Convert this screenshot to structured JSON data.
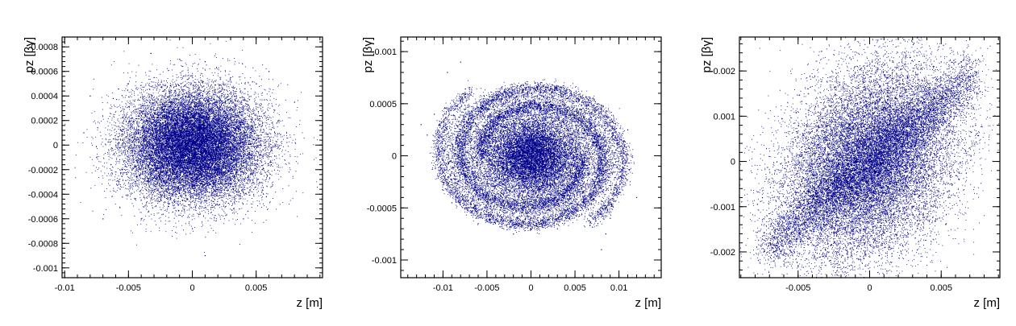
{
  "chart_data": [
    {
      "type": "scatter",
      "title": "",
      "xlabel": "z [m]",
      "ylabel": "pz [βγ]",
      "xlim": [
        -0.0102,
        0.0102
      ],
      "ylim": [
        -0.00108,
        0.00088
      ],
      "xticks": [
        -0.01,
        -0.005,
        0,
        0.005
      ],
      "xtick_labels": [
        "-0.01",
        "-0.005",
        "0",
        "0.005"
      ],
      "yticks": [
        -0.001,
        -0.0008,
        -0.0006,
        -0.0004,
        -0.0002,
        0,
        0.0002,
        0.0004,
        0.0006,
        0.0008
      ],
      "ytick_labels": [
        "-0.001",
        "-0.0008",
        "-0.0006",
        "-0.0004",
        "-0.0002",
        "0",
        "0.0002",
        "0.0004",
        "0.0006",
        "0.0008"
      ],
      "grid": false,
      "legend": "none",
      "marker_color": "#00008b",
      "distribution": "round Gaussian core centred at (0, 0), spread about 0.0026 m in z and 0.00022 in pz",
      "series": [
        {
          "values": [
            [
              -0.008,
              0.0004
            ],
            [
              -0.0085,
              0.0001
            ],
            [
              -0.0075,
              -0.0001
            ],
            [
              -0.007,
              -0.0006
            ],
            [
              0.008,
              0.00035
            ],
            [
              0.006,
              0.0006
            ],
            [
              0.005,
              0.0005
            ],
            [
              0.004,
              -0.0006
            ],
            [
              -0.004,
              -0.0006
            ],
            [
              -0.005,
              0.0005
            ],
            [
              0.001,
              0.00068
            ],
            [
              -0.001,
              0.0007
            ],
            [
              0.0,
              -0.00068
            ],
            [
              0.001,
              -0.0009
            ],
            [
              -0.003,
              0.00055
            ],
            [
              0.003,
              0.00055
            ],
            [
              -0.006,
              0.0
            ],
            [
              0.0065,
              0.0
            ],
            [
              0.005,
              -0.0002
            ],
            [
              -0.0055,
              -0.0002
            ],
            [
              0.002,
              0.0003
            ],
            [
              -0.002,
              -0.0003
            ],
            [
              0.0,
              0.0
            ],
            [
              0.0015,
              -0.0001
            ],
            [
              -0.0015,
              0.0001
            ],
            [
              -0.0005,
              0.0004
            ],
            [
              0.0005,
              -0.0004
            ],
            [
              -0.0035,
              0.0002
            ],
            [
              0.0035,
              -0.0002
            ],
            [
              0.004,
              0.0003
            ],
            [
              -0.004,
              -0.0003
            ],
            [
              0.0025,
              0.00045
            ],
            [
              -0.0025,
              -0.00045
            ],
            [
              -0.0062,
              0.00038
            ],
            [
              0.0058,
              -0.00042
            ],
            [
              -0.0008,
              -0.00058
            ]
          ]
        }
      ]
    },
    {
      "type": "scatter",
      "title": "",
      "xlabel": "z [m]",
      "ylabel": "pz [βγ]",
      "xlim": [
        -0.0148,
        0.0148
      ],
      "ylim": [
        -0.00117,
        0.00114
      ],
      "xticks": [
        -0.01,
        -0.005,
        0,
        0.005,
        0.01
      ],
      "xtick_labels": [
        "-0.01",
        "-0.005",
        "0",
        "0.005",
        "0.01"
      ],
      "yticks": [
        -0.001,
        -0.0005,
        0,
        0.0005,
        0.001
      ],
      "ytick_labels": [
        "-0.001",
        "-0.0005",
        "0",
        "0.0005",
        "0.001"
      ],
      "grid": false,
      "legend": "none",
      "marker_color": "#00008b",
      "distribution": "dense core centred at (0, 0) wrapped by spiral arms out to about 0.012 m in z and 0.0009 in pz",
      "series": [
        {
          "values": [
            [
              -0.011,
              0.0004
            ],
            [
              -0.0118,
              0.0002
            ],
            [
              -0.0105,
              -0.0002
            ],
            [
              -0.009,
              -0.00045
            ],
            [
              -0.006,
              -0.00065
            ],
            [
              -0.002,
              -0.00075
            ],
            [
              0.003,
              -0.0007
            ],
            [
              0.007,
              -0.00055
            ],
            [
              0.01,
              -0.0003
            ],
            [
              0.0115,
              0.0
            ],
            [
              0.011,
              0.00025
            ],
            [
              0.008,
              0.00045
            ],
            [
              0.004,
              0.00055
            ],
            [
              0.0,
              0.0006
            ],
            [
              -0.004,
              0.00058
            ],
            [
              -0.008,
              0.00052
            ],
            [
              -0.0095,
              0.0008
            ],
            [
              -0.008,
              0.0009
            ],
            [
              0.008,
              -0.0009
            ],
            [
              0.0085,
              -0.00075
            ],
            [
              0.009,
              -0.0006
            ],
            [
              0.0,
              0.0
            ],
            [
              0.002,
              0.0001
            ],
            [
              -0.002,
              -0.0001
            ],
            [
              0.0015,
              -0.0002
            ],
            [
              -0.0015,
              0.0002
            ],
            [
              0.005,
              0.0002
            ],
            [
              -0.005,
              -0.0002
            ],
            [
              0.006,
              -0.0003
            ],
            [
              -0.006,
              0.0003
            ],
            [
              0.0,
              -0.0004
            ],
            [
              0.0,
              0.0004
            ],
            [
              -0.0125,
              0.0003
            ],
            [
              0.012,
              -0.0004
            ]
          ]
        }
      ]
    },
    {
      "type": "scatter",
      "title": "",
      "xlabel": "z [m]",
      "ylabel": "pz [βγ]",
      "xlim": [
        -0.0091,
        0.0091
      ],
      "ylim": [
        -0.00257,
        0.00275
      ],
      "xticks": [
        -0.005,
        0,
        0.005
      ],
      "xtick_labels": [
        "-0.005",
        "0",
        "0.005"
      ],
      "yticks": [
        -0.002,
        -0.001,
        0,
        0.001,
        0.002
      ],
      "ytick_labels": [
        "-0.002",
        "-0.001",
        "0",
        "0.001",
        "0.002"
      ],
      "grid": false,
      "legend": "none",
      "marker_color": "#00008b",
      "distribution": "tilted elliptical core with positive z–pz correlation, tails reaching about (-0.007, -0.0022) and (0.0075, 0.0021)",
      "series": [
        {
          "values": [
            [
              -0.007,
              -0.0018
            ],
            [
              -0.0065,
              -0.0021
            ],
            [
              -0.006,
              -0.0022
            ],
            [
              -0.005,
              -0.0023
            ],
            [
              -0.0075,
              -0.0008
            ],
            [
              -0.006,
              -0.0005
            ],
            [
              -0.004,
              0.0004
            ],
            [
              -0.003,
              0.0008
            ],
            [
              0.007,
              0.0021
            ],
            [
              0.006,
              0.0022
            ],
            [
              0.005,
              0.0022
            ],
            [
              0.0075,
              0.0015
            ],
            [
              0.0074,
              0.0008
            ],
            [
              0.007,
              0.0003
            ],
            [
              0.004,
              -0.0005
            ],
            [
              0.002,
              -0.0012
            ],
            [
              0.0,
              0.0
            ],
            [
              0.001,
              0.0002
            ],
            [
              -0.001,
              -0.0002
            ],
            [
              0.002,
              0.0005
            ],
            [
              -0.002,
              -0.0005
            ],
            [
              0.003,
              0.0007
            ],
            [
              -0.003,
              -0.0007
            ],
            [
              0.004,
              0.001
            ],
            [
              -0.004,
              -0.001
            ],
            [
              0.005,
              0.0014
            ],
            [
              -0.005,
              -0.0014
            ],
            [
              0.0,
              0.0008
            ],
            [
              0.0,
              -0.0008
            ],
            [
              0.0025,
              0.0016
            ],
            [
              -0.0025,
              -0.0016
            ],
            [
              0.006,
              0.0018
            ],
            [
              -0.0055,
              -0.002
            ],
            [
              0.0015,
              -0.0004
            ],
            [
              -0.0015,
              0.0004
            ]
          ]
        }
      ]
    }
  ]
}
